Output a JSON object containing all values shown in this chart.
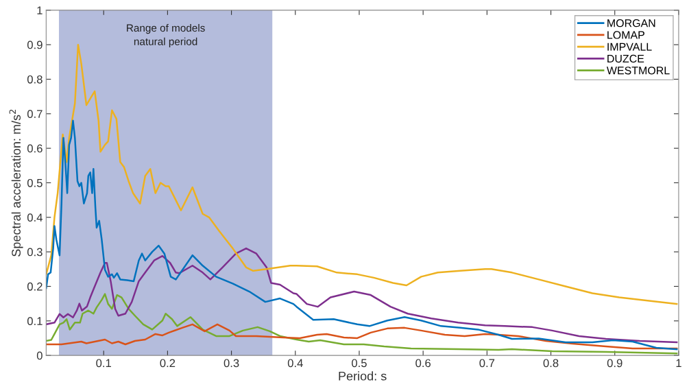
{
  "chart_data": {
    "type": "line",
    "xlabel": "Period: s",
    "ylabel": "Spectral acceleration: m/s$^{2}$",
    "xlim": [
      0.01,
      1
    ],
    "ylim": [
      0,
      1
    ],
    "xticks": [
      0.1,
      0.2,
      0.3,
      0.4,
      0.5,
      0.6,
      0.7,
      0.8,
      0.9,
      1
    ],
    "yticks": [
      0,
      0.1,
      0.2,
      0.3,
      0.4,
      0.5,
      0.6,
      0.7,
      0.8,
      0.9,
      1
    ],
    "grid": false,
    "legend": "top right",
    "line_style": "solid",
    "marker": "none",
    "bands": [
      {
        "axis": "x",
        "from": 0.03,
        "to": 0.364,
        "label": "Range of models\nnatural period",
        "color": "#b4bcdc"
      }
    ],
    "series": [
      {
        "name": "MORGAN",
        "color": "#0072bd",
        "x": [
          0.01,
          0.013,
          0.017,
          0.021,
          0.023,
          0.026,
          0.031,
          0.034,
          0.037,
          0.04,
          0.043,
          0.046,
          0.049,
          0.052,
          0.055,
          0.059,
          0.062,
          0.065,
          0.069,
          0.074,
          0.076,
          0.079,
          0.082,
          0.084,
          0.087,
          0.089,
          0.093,
          0.097,
          0.102,
          0.107,
          0.113,
          0.116,
          0.121,
          0.126,
          0.137,
          0.147,
          0.155,
          0.16,
          0.165,
          0.176,
          0.186,
          0.195,
          0.205,
          0.213,
          0.239,
          0.255,
          0.276,
          0.302,
          0.328,
          0.353,
          0.376,
          0.397,
          0.402,
          0.428,
          0.46,
          0.497,
          0.516,
          0.544,
          0.571,
          0.597,
          0.628,
          0.658,
          0.686,
          0.718,
          0.739,
          0.781,
          0.823,
          0.865,
          0.897,
          0.928,
          0.965,
          0.997
        ],
        "values": [
          0.195,
          0.235,
          0.24,
          0.31,
          0.375,
          0.335,
          0.29,
          0.44,
          0.63,
          0.56,
          0.47,
          0.61,
          0.63,
          0.68,
          0.63,
          0.505,
          0.49,
          0.5,
          0.44,
          0.47,
          0.52,
          0.53,
          0.47,
          0.54,
          0.43,
          0.37,
          0.39,
          0.335,
          0.248,
          0.228,
          0.235,
          0.225,
          0.238,
          0.22,
          0.218,
          0.215,
          0.275,
          0.295,
          0.275,
          0.3,
          0.318,
          0.295,
          0.228,
          0.22,
          0.29,
          0.26,
          0.228,
          0.208,
          0.185,
          0.155,
          0.165,
          0.149,
          0.141,
          0.103,
          0.105,
          0.09,
          0.085,
          0.101,
          0.111,
          0.101,
          0.085,
          0.08,
          0.075,
          0.06,
          0.048,
          0.049,
          0.038,
          0.038,
          0.044,
          0.04,
          0.022,
          0.018
        ]
      },
      {
        "name": "LOMAP",
        "color": "#d95319",
        "x": [
          0.01,
          0.034,
          0.065,
          0.073,
          0.102,
          0.113,
          0.123,
          0.134,
          0.149,
          0.165,
          0.181,
          0.192,
          0.202,
          0.223,
          0.239,
          0.258,
          0.278,
          0.297,
          0.307,
          0.339,
          0.381,
          0.407,
          0.434,
          0.449,
          0.476,
          0.497,
          0.518,
          0.544,
          0.571,
          0.597,
          0.634,
          0.665,
          0.697,
          0.718,
          0.749,
          0.792,
          0.834,
          0.886,
          0.928,
          0.997
        ],
        "values": [
          0.032,
          0.032,
          0.04,
          0.035,
          0.046,
          0.035,
          0.04,
          0.032,
          0.042,
          0.046,
          0.062,
          0.058,
          0.066,
          0.08,
          0.09,
          0.07,
          0.09,
          0.072,
          0.056,
          0.056,
          0.052,
          0.05,
          0.06,
          0.062,
          0.052,
          0.05,
          0.066,
          0.078,
          0.08,
          0.072,
          0.06,
          0.056,
          0.062,
          0.06,
          0.056,
          0.042,
          0.034,
          0.026,
          0.02,
          0.02
        ]
      },
      {
        "name": "IMPVALL",
        "color": "#edb120",
        "x": [
          0.01,
          0.018,
          0.023,
          0.028,
          0.036,
          0.042,
          0.046,
          0.055,
          0.06,
          0.065,
          0.073,
          0.081,
          0.086,
          0.092,
          0.095,
          0.102,
          0.107,
          0.113,
          0.12,
          0.126,
          0.132,
          0.139,
          0.146,
          0.157,
          0.165,
          0.173,
          0.181,
          0.189,
          0.197,
          0.202,
          0.221,
          0.239,
          0.255,
          0.265,
          0.281,
          0.302,
          0.323,
          0.334,
          0.355,
          0.392,
          0.402,
          0.434,
          0.465,
          0.497,
          0.523,
          0.553,
          0.574,
          0.597,
          0.623,
          0.658,
          0.697,
          0.707,
          0.739,
          0.781,
          0.823,
          0.865,
          0.907,
          0.949,
          0.997
        ],
        "values": [
          0.235,
          0.29,
          0.4,
          0.47,
          0.64,
          0.56,
          0.63,
          0.73,
          0.9,
          0.845,
          0.725,
          0.75,
          0.765,
          0.68,
          0.59,
          0.61,
          0.62,
          0.71,
          0.685,
          0.56,
          0.545,
          0.505,
          0.47,
          0.44,
          0.52,
          0.54,
          0.47,
          0.5,
          0.49,
          0.49,
          0.42,
          0.487,
          0.41,
          0.4,
          0.36,
          0.31,
          0.255,
          0.245,
          0.25,
          0.26,
          0.26,
          0.258,
          0.24,
          0.235,
          0.225,
          0.21,
          0.203,
          0.228,
          0.24,
          0.245,
          0.25,
          0.25,
          0.24,
          0.22,
          0.2,
          0.18,
          0.168,
          0.159,
          0.149
        ]
      },
      {
        "name": "DUZCE",
        "color": "#7e2f8e",
        "x": [
          0.01,
          0.023,
          0.031,
          0.037,
          0.044,
          0.052,
          0.058,
          0.062,
          0.066,
          0.074,
          0.079,
          0.086,
          0.095,
          0.102,
          0.105,
          0.111,
          0.118,
          0.123,
          0.134,
          0.144,
          0.155,
          0.165,
          0.179,
          0.192,
          0.204,
          0.213,
          0.218,
          0.239,
          0.255,
          0.267,
          0.286,
          0.307,
          0.323,
          0.339,
          0.355,
          0.362,
          0.376,
          0.397,
          0.402,
          0.418,
          0.435,
          0.455,
          0.492,
          0.518,
          0.549,
          0.576,
          0.613,
          0.655,
          0.697,
          0.728,
          0.771,
          0.802,
          0.844,
          0.886,
          0.939,
          0.997
        ],
        "values": [
          0.09,
          0.095,
          0.12,
          0.11,
          0.12,
          0.11,
          0.13,
          0.15,
          0.13,
          0.142,
          0.168,
          0.2,
          0.24,
          0.268,
          0.268,
          0.215,
          0.135,
          0.115,
          0.121,
          0.155,
          0.215,
          0.24,
          0.275,
          0.288,
          0.268,
          0.24,
          0.238,
          0.26,
          0.24,
          0.22,
          0.255,
          0.295,
          0.31,
          0.295,
          0.255,
          0.21,
          0.205,
          0.18,
          0.178,
          0.149,
          0.141,
          0.168,
          0.185,
          0.175,
          0.141,
          0.121,
          0.107,
          0.095,
          0.087,
          0.085,
          0.082,
          0.072,
          0.056,
          0.048,
          0.042,
          0.038
        ]
      },
      {
        "name": "WESTMORL",
        "color": "#77ac30",
        "x": [
          0.01,
          0.018,
          0.023,
          0.031,
          0.037,
          0.042,
          0.047,
          0.055,
          0.063,
          0.067,
          0.076,
          0.084,
          0.089,
          0.097,
          0.102,
          0.107,
          0.113,
          0.121,
          0.128,
          0.139,
          0.149,
          0.162,
          0.176,
          0.192,
          0.197,
          0.207,
          0.215,
          0.236,
          0.255,
          0.276,
          0.297,
          0.318,
          0.341,
          0.36,
          0.376,
          0.402,
          0.421,
          0.439,
          0.476,
          0.507,
          0.539,
          0.581,
          0.655,
          0.718,
          0.739,
          0.802,
          0.886,
          0.997
        ],
        "values": [
          0.042,
          0.045,
          0.062,
          0.09,
          0.095,
          0.105,
          0.075,
          0.095,
          0.095,
          0.121,
          0.13,
          0.121,
          0.139,
          0.161,
          0.178,
          0.149,
          0.135,
          0.175,
          0.168,
          0.135,
          0.115,
          0.09,
          0.075,
          0.101,
          0.121,
          0.105,
          0.085,
          0.111,
          0.075,
          0.056,
          0.056,
          0.072,
          0.082,
          0.07,
          0.056,
          0.046,
          0.04,
          0.044,
          0.032,
          0.032,
          0.026,
          0.02,
          0.018,
          0.016,
          0.018,
          0.012,
          0.01,
          0.006
        ]
      }
    ]
  }
}
